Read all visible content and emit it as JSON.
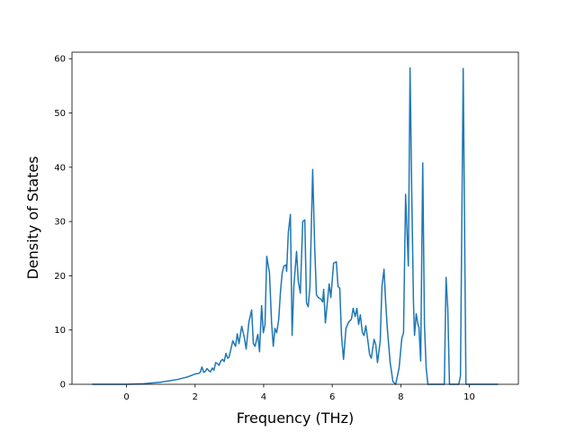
{
  "chart_data": {
    "type": "line",
    "xlabel": "Frequency (THz)",
    "ylabel": "Density of States",
    "xlim": [
      -1.59,
      11.43
    ],
    "ylim": [
      0,
      61.2
    ],
    "xticks": [
      0,
      2,
      4,
      6,
      8,
      10
    ],
    "yticks": [
      0,
      10,
      20,
      30,
      40,
      50,
      60
    ],
    "grid": false,
    "series": [
      {
        "color": "#1f77b4",
        "x": [
          -1,
          0,
          0.5,
          1,
          1.5,
          1.8,
          2.0,
          2.1,
          2.15,
          2.2,
          2.25,
          2.3,
          2.35,
          2.4,
          2.45,
          2.5,
          2.55,
          2.6,
          2.65,
          2.7,
          2.75,
          2.8,
          2.85,
          2.9,
          2.95,
          2.99,
          3.1,
          3.18,
          3.23,
          3.28,
          3.36,
          3.44,
          3.49,
          3.57,
          3.65,
          3.7,
          3.75,
          3.83,
          3.88,
          3.94,
          3.99,
          4.04,
          4.09,
          4.17,
          4.23,
          4.28,
          4.33,
          4.38,
          4.44,
          4.49,
          4.54,
          4.59,
          4.65,
          4.67,
          4.72,
          4.78,
          4.83,
          4.88,
          4.96,
          5.01,
          5.07,
          5.14,
          5.2,
          5.25,
          5.3,
          5.35,
          5.43,
          5.49,
          5.54,
          5.59,
          5.67,
          5.72,
          5.75,
          5.8,
          5.91,
          5.96,
          6.04,
          6.12,
          6.17,
          6.22,
          6.27,
          6.33,
          6.4,
          6.48,
          6.56,
          6.61,
          6.67,
          6.72,
          6.77,
          6.82,
          6.88,
          6.93,
          6.98,
          7.03,
          7.09,
          7.14,
          7.22,
          7.27,
          7.32,
          7.4,
          7.45,
          7.51,
          7.56,
          7.61,
          7.69,
          7.77,
          7.85,
          7.95,
          8.03,
          8.08,
          8.14,
          8.22,
          8.27,
          8.32,
          8.37,
          8.4,
          8.45,
          8.5,
          8.53,
          8.58,
          8.64,
          8.69,
          8.74,
          8.79,
          9.27,
          9.32,
          9.37,
          9.42,
          9.69,
          9.74,
          9.82,
          9.9,
          10.84
        ],
        "values": [
          0,
          0,
          0.1,
          0.4,
          0.9,
          1.4,
          1.9,
          2.0,
          2.2,
          3.2,
          2.2,
          2.4,
          2.9,
          2.5,
          2.3,
          3.0,
          2.6,
          4.0,
          3.8,
          3.5,
          4.3,
          4.6,
          4.2,
          5.7,
          4.8,
          5,
          8,
          7,
          9.3,
          7.5,
          10.7,
          8.5,
          6.5,
          11.5,
          13.7,
          7.5,
          7,
          9.2,
          6,
          14.5,
          9.5,
          11,
          23.6,
          20.5,
          11.5,
          7,
          10.3,
          9.5,
          12,
          17,
          20.5,
          21.8,
          22,
          20.8,
          28,
          31.3,
          9,
          18,
          24.5,
          19,
          16.8,
          30,
          30.3,
          15,
          14.3,
          18,
          39.6,
          25,
          16.5,
          16,
          15.7,
          15.2,
          17.5,
          11.3,
          18.5,
          16,
          22.3,
          22.6,
          18,
          17.7,
          9,
          4.6,
          10.3,
          11.5,
          12,
          14,
          12.5,
          14,
          11,
          12.8,
          9.5,
          9,
          10.8,
          8.5,
          5.5,
          4.8,
          8.3,
          7.3,
          4,
          8,
          18,
          21.2,
          15,
          10,
          4,
          0.5,
          0,
          3,
          8.5,
          9.5,
          35,
          21.8,
          58.3,
          35,
          15,
          9,
          13,
          11,
          10.5,
          4.3,
          40.8,
          11,
          3,
          0,
          0,
          19.7,
          14,
          0,
          0,
          1.5,
          58.2,
          0,
          0
        ]
      }
    ]
  }
}
